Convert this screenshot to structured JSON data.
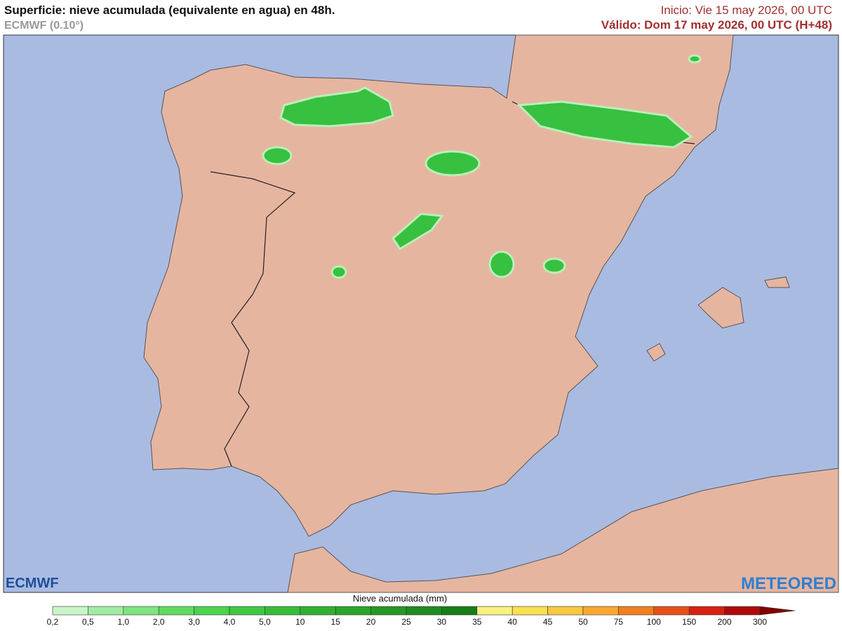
{
  "header": {
    "title": "Superficie: nieve acumulada (equivalente en agua) en 48h.",
    "model": "ECMWF (0.10°)",
    "init": "Inicio: Vie 15 may 2026, 00 UTC",
    "valid": "Válido: Dom 17 may 2026, 00 UTC (H+48)"
  },
  "logos": {
    "left": "ECMWF",
    "right": "METEORED"
  },
  "legend": {
    "title": "Nieve acumulada (mm)",
    "labels": [
      "0,2",
      "0,5",
      "1,0",
      "2,0",
      "3,0",
      "4,0",
      "5,0",
      "10",
      "15",
      "20",
      "25",
      "30",
      "35",
      "40",
      "45",
      "50",
      "75",
      "100",
      "150",
      "200",
      "300"
    ],
    "colors": [
      "#c8f5c8",
      "#a0eca0",
      "#7ee47e",
      "#5fdc5f",
      "#4cd24c",
      "#40c840",
      "#38bc38",
      "#30b030",
      "#2aa42a",
      "#249824",
      "#1e8c1e",
      "#187e18",
      "#f8f080",
      "#f8e050",
      "#f8c840",
      "#f8a830",
      "#f08020",
      "#e85018",
      "#d82010",
      "#b00808",
      "#800000"
    ]
  }
}
